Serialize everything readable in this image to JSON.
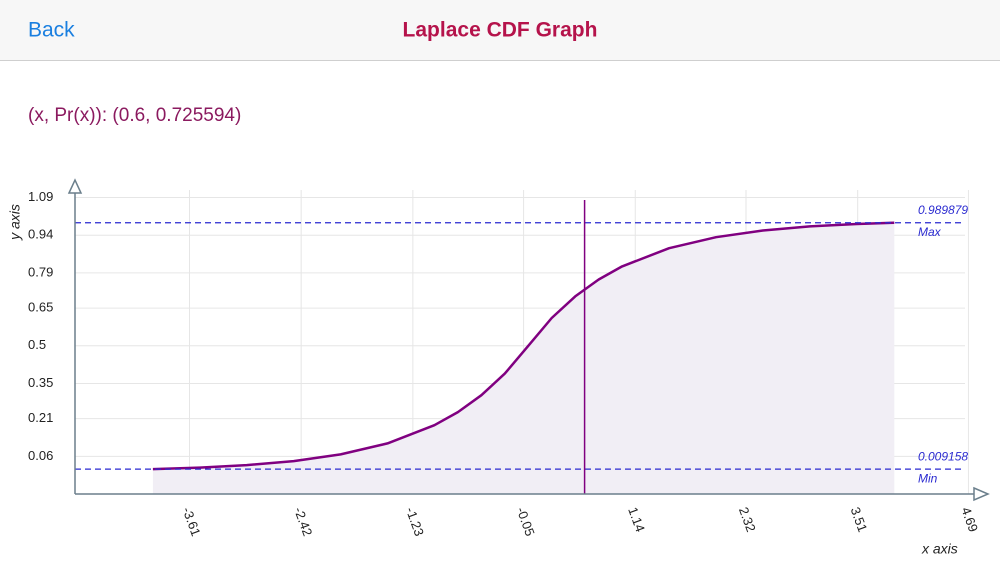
{
  "header": {
    "back": "Back",
    "title": "Laplace CDF Graph"
  },
  "readout": "(x, Pr(x)): (0.6, 0.725594)",
  "chart_data": {
    "type": "line",
    "x_label": "x axis",
    "y_label": "y axis",
    "x": [
      -4,
      -3.5,
      -3,
      -2.5,
      -2,
      -1.5,
      -1,
      -0.75,
      -0.5,
      -0.25,
      0,
      0.25,
      0.5,
      0.75,
      1,
      1.5,
      2,
      2.5,
      3,
      3.5,
      3.9
    ],
    "values": [
      0.009158,
      0.015099,
      0.024894,
      0.041042,
      0.067668,
      0.111565,
      0.18394,
      0.236183,
      0.303265,
      0.3894,
      0.5,
      0.6106,
      0.696735,
      0.763817,
      0.81606,
      0.888435,
      0.932332,
      0.958958,
      0.975106,
      0.984901,
      0.989879
    ],
    "color": "#800080",
    "fill": "#f1eef5",
    "xlim": [
      -4.83,
      4.76
    ],
    "ylim": [
      -0.09,
      1.14
    ],
    "xticks": [
      -3.61,
      -2.42,
      -1.23,
      -0.05,
      1.14,
      2.32,
      3.51,
      4.69
    ],
    "yticks": [
      0.06,
      0.21,
      0.35,
      0.5,
      0.65,
      0.79,
      0.94,
      1.09
    ],
    "grid": true,
    "cursor_x": 0.6,
    "max_line": {
      "value": 0.989879,
      "label": "Max"
    },
    "min_line": {
      "value": 0.009158,
      "label": "Min"
    }
  }
}
